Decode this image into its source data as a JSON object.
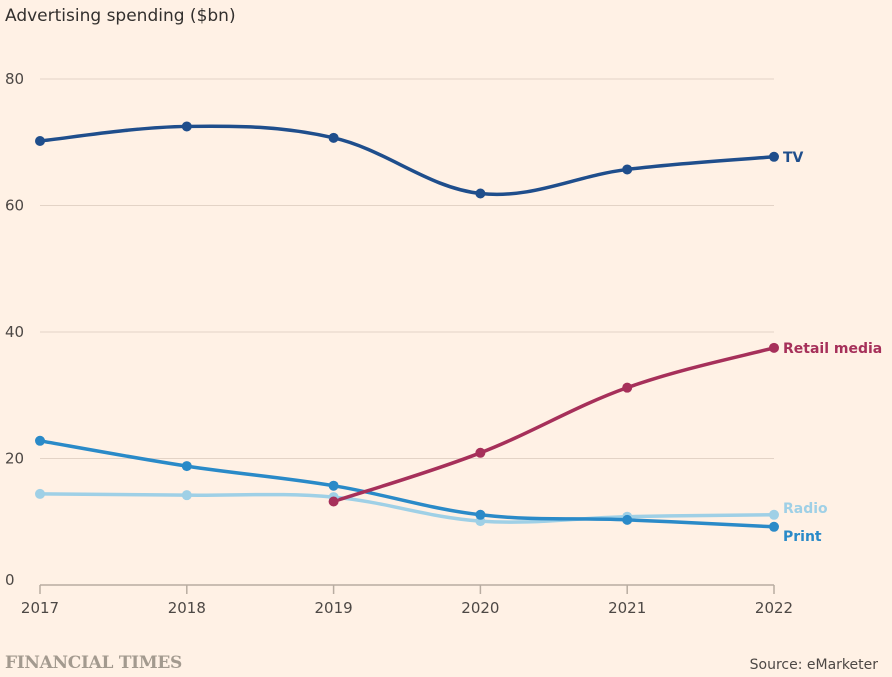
{
  "header": {
    "title": "Advertising spending ($bn)"
  },
  "footer": {
    "brand": "FINANCIAL TIMES",
    "source": "Source: eMarketer"
  },
  "chart_data": {
    "type": "line",
    "title": "Advertising spending ($bn)",
    "xlabel": "",
    "ylabel": "",
    "x": [
      2017,
      2018,
      2019,
      2020,
      2021,
      2022
    ],
    "xticks": [
      "2017",
      "2018",
      "2019",
      "2020",
      "2021",
      "2022"
    ],
    "yticks": [
      0,
      20,
      40,
      60,
      80
    ],
    "ylim": [
      0,
      80
    ],
    "grid": true,
    "legend": "direct labels at right end of each line",
    "series": [
      {
        "name": "TV",
        "color": "#1f4e8c",
        "values": [
          70.2,
          72.5,
          70.7,
          61.9,
          65.7,
          67.7
        ]
      },
      {
        "name": "Retail media",
        "color": "#a6305a",
        "values": [
          null,
          null,
          13.2,
          20.9,
          31.2,
          37.5
        ]
      },
      {
        "name": "Radio",
        "color": "#9fd0e6",
        "values": [
          14.4,
          14.2,
          13.9,
          10.1,
          10.8,
          11.1
        ]
      },
      {
        "name": "Print",
        "color": "#2a8ac8",
        "values": [
          22.8,
          18.8,
          15.7,
          11.1,
          10.3,
          9.2
        ]
      }
    ]
  }
}
